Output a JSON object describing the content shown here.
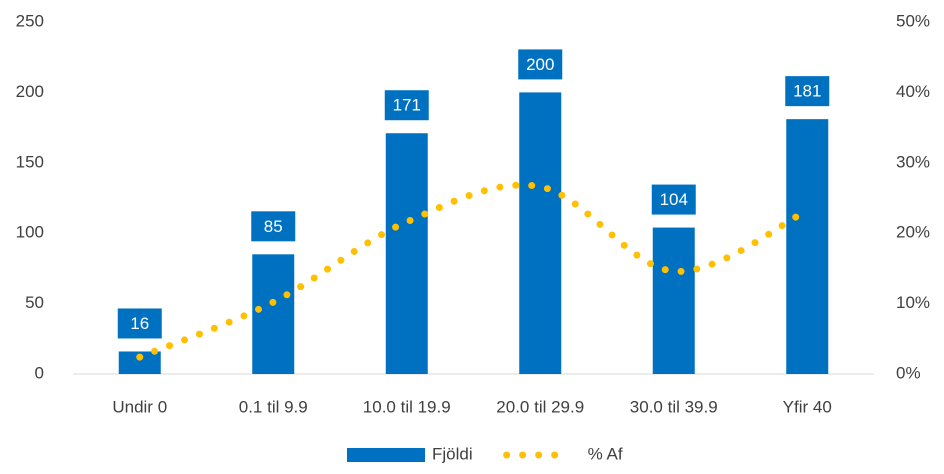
{
  "chart_data": {
    "type": "bar",
    "categories": [
      "Undir 0",
      "0.1 til 9.9",
      "10.0 til 19.9",
      "20.0 til 29.9",
      "30.0 til 39.9",
      "Yfir 40"
    ],
    "series": [
      {
        "name": "Fjöldi",
        "type": "bar",
        "color": "#0070c0",
        "values": [
          16,
          85,
          171,
          200,
          104,
          181
        ]
      },
      {
        "name": "% Af",
        "type": "line",
        "axis": "y2",
        "color": "#ffc000",
        "values": [
          2.4,
          10.2,
          21.6,
          26.6,
          14.6,
          23.2
        ]
      }
    ],
    "ylim": [
      0,
      250
    ],
    "yticks": [
      0,
      50,
      100,
      150,
      200,
      250
    ],
    "y2lim": [
      0,
      50
    ],
    "y2ticks": [
      {
        "value": 0,
        "label": "0%"
      },
      {
        "value": 10,
        "label": "10%"
      },
      {
        "value": 20,
        "label": "20%"
      },
      {
        "value": 30,
        "label": "30%"
      },
      {
        "value": 40,
        "label": "40%"
      },
      {
        "value": 50,
        "label": "50%"
      }
    ],
    "legend": "bottom",
    "grid": false
  }
}
